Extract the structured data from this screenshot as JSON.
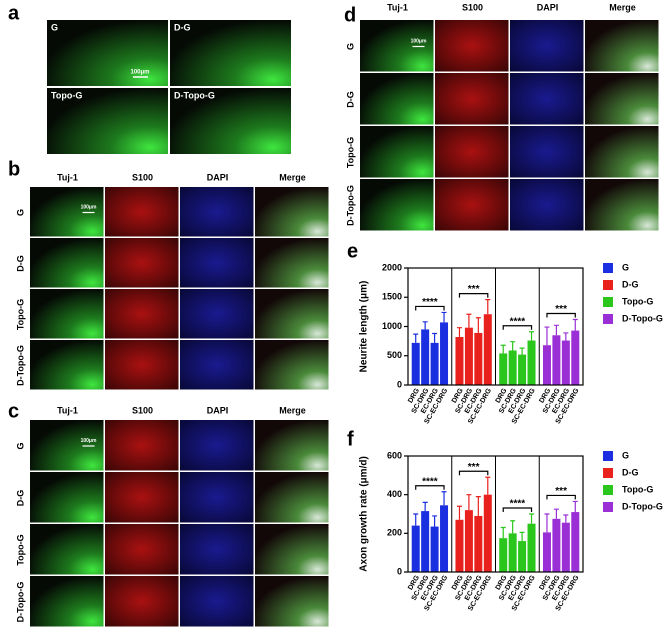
{
  "panels": {
    "a": {
      "label": "a",
      "images": [
        "G",
        "D-G",
        "Topo-G",
        "D-Topo-G"
      ],
      "scale": "100μm"
    },
    "b": {
      "label": "b",
      "columns": [
        "Tuj-1",
        "S100",
        "DAPI",
        "Merge"
      ],
      "rows": [
        "G",
        "D-G",
        "Topo-G",
        "D-Topo-G"
      ],
      "scale": "100μm"
    },
    "c": {
      "label": "c",
      "columns": [
        "Tuj-1",
        "S100",
        "DAPI",
        "Merge"
      ],
      "rows": [
        "G",
        "D-G",
        "Topo-G",
        "D-Topo-G"
      ],
      "scale": "100μm"
    },
    "d": {
      "label": "d",
      "columns": [
        "Tuj-1",
        "S100",
        "DAPI",
        "Merge"
      ],
      "rows": [
        "G",
        "D-G",
        "Topo-G",
        "D-Topo-G"
      ],
      "scale": "100μm"
    }
  },
  "chart_data": [
    {
      "type": "bar",
      "panel_label": "e",
      "ylabel": "Neurite length (μm)",
      "categories": [
        "DRG",
        "SC-DRG",
        "EC-DRG",
        "SC-EC-DRG"
      ],
      "ylim": [
        0,
        2000
      ],
      "yticks": [
        0,
        500,
        1000,
        1500,
        2000
      ],
      "series": [
        {
          "name": "G",
          "color": "#1a2fe0",
          "values": [
            720,
            950,
            720,
            1070
          ],
          "errors": [
            150,
            130,
            160,
            170
          ],
          "annotation": "****"
        },
        {
          "name": "D-G",
          "color": "#e8211c",
          "values": [
            820,
            980,
            890,
            1210
          ],
          "errors": [
            160,
            230,
            260,
            250
          ],
          "annotation": "***"
        },
        {
          "name": "Topo-G",
          "color": "#2bc61b",
          "values": [
            540,
            590,
            520,
            760
          ],
          "errors": [
            140,
            150,
            110,
            150
          ],
          "annotation": "****"
        },
        {
          "name": "D-Topo-G",
          "color": "#9b2fd6",
          "values": [
            680,
            850,
            760,
            930
          ],
          "errors": [
            310,
            170,
            130,
            190
          ],
          "annotation": "***"
        }
      ]
    },
    {
      "type": "bar",
      "panel_label": "f",
      "ylabel": "Axon growth rate (μm/d)",
      "categories": [
        "DRG",
        "SC-DRG",
        "EC-DRG",
        "SC-EC-DRG"
      ],
      "ylim": [
        0,
        600
      ],
      "yticks": [
        0,
        200,
        400,
        600
      ],
      "series": [
        {
          "name": "G",
          "color": "#1a2fe0",
          "values": [
            240,
            315,
            235,
            345
          ],
          "errors": [
            60,
            45,
            55,
            70
          ],
          "annotation": "****"
        },
        {
          "name": "D-G",
          "color": "#e8211c",
          "values": [
            270,
            320,
            290,
            400
          ],
          "errors": [
            70,
            80,
            100,
            90
          ],
          "annotation": "***"
        },
        {
          "name": "Topo-G",
          "color": "#2bc61b",
          "values": [
            175,
            200,
            160,
            250
          ],
          "errors": [
            55,
            65,
            45,
            50
          ],
          "annotation": "****"
        },
        {
          "name": "D-Topo-G",
          "color": "#9b2fd6",
          "values": [
            205,
            275,
            255,
            310
          ],
          "errors": [
            95,
            50,
            40,
            55
          ],
          "annotation": "***"
        }
      ]
    }
  ]
}
